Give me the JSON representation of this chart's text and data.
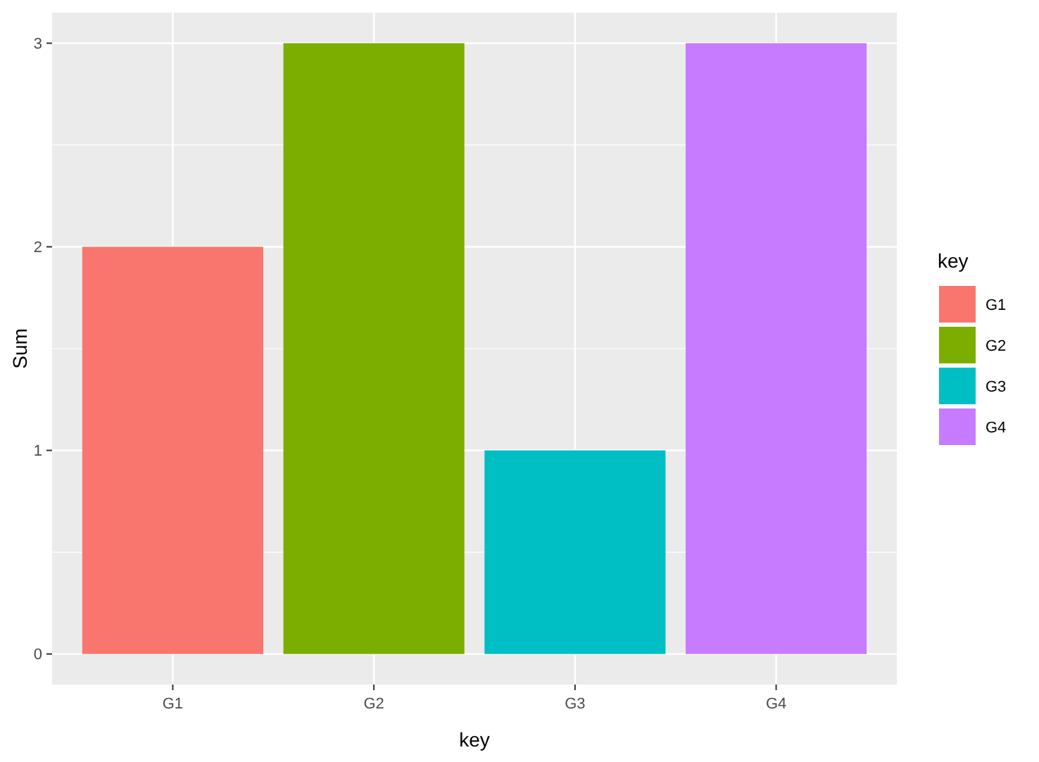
{
  "chart_data": {
    "type": "bar",
    "xlabel": "key",
    "ylabel": "Sum",
    "legend_title": "key",
    "categories": [
      "G1",
      "G2",
      "G3",
      "G4"
    ],
    "series": [
      {
        "name": "G1",
        "color": "#f8766d",
        "values": [
          2,
          null,
          null,
          null
        ]
      },
      {
        "name": "G2",
        "color": "#7cae00",
        "values": [
          null,
          3,
          null,
          null
        ]
      },
      {
        "name": "G3",
        "color": "#00bfc4",
        "values": [
          null,
          null,
          1,
          null
        ]
      },
      {
        "name": "G4",
        "color": "#c77cff",
        "values": [
          null,
          null,
          null,
          3
        ]
      }
    ],
    "ylim": [
      -0.15,
      3.15
    ],
    "yticks": [
      0,
      1,
      2,
      3
    ],
    "grid": true,
    "legend": "right"
  }
}
